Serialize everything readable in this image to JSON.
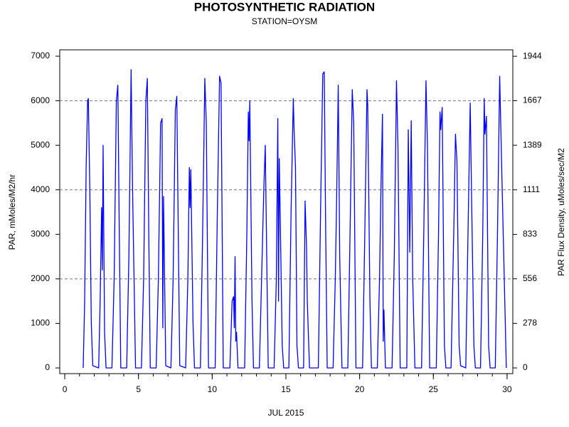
{
  "chart_data": {
    "type": "line",
    "title": "PHOTOSYNTHETIC RADIATION",
    "subtitle": "STATION=OYSM",
    "x_label": "JUL 2015",
    "y_label": "PAR, mMoles/M2/hr",
    "y2_label": "PAR Flux Density, uMoles/sec/M2",
    "xlim": [
      -0.34,
      30.39
    ],
    "xticks": [
      0,
      5,
      10,
      15,
      20,
      25,
      30
    ],
    "x_minor_step": 1,
    "ylim": [
      -128,
      7144
    ],
    "yticks": [
      0,
      1000,
      2000,
      3000,
      4000,
      5000,
      6000,
      7000
    ],
    "y2lim": [
      -35.6,
      1984.4
    ],
    "y2ticks": [
      0,
      278,
      556,
      833,
      1111,
      1389,
      1667,
      1944
    ],
    "reference_lines": [
      2000,
      4000,
      6000
    ],
    "series": [
      {
        "color": "#0000ff",
        "x": [
          1.25,
          1.35,
          1.45,
          1.55,
          1.6,
          1.7,
          1.8,
          1.9,
          2.3,
          2.4,
          2.5,
          2.55,
          2.6,
          2.7,
          2.8,
          3.2,
          3.35,
          3.5,
          3.6,
          3.7,
          3.8,
          4.2,
          4.35,
          4.5,
          4.6,
          4.8,
          5.2,
          5.35,
          5.5,
          5.6,
          5.7,
          5.8,
          6.2,
          6.35,
          6.5,
          6.6,
          6.65,
          6.7,
          6.85,
          7.2,
          7.35,
          7.5,
          7.6,
          7.7,
          7.8,
          8.2,
          8.35,
          8.45,
          8.5,
          8.55,
          8.7,
          8.8,
          9.2,
          9.35,
          9.5,
          9.6,
          9.75,
          10.2,
          10.35,
          10.5,
          10.6,
          10.75,
          11.2,
          11.35,
          11.45,
          11.5,
          11.55,
          11.6,
          11.65,
          11.75,
          12.2,
          12.35,
          12.45,
          12.5,
          12.55,
          12.7,
          12.8,
          13.2,
          13.35,
          13.5,
          13.6,
          13.7,
          13.8,
          14.2,
          14.35,
          14.45,
          14.5,
          14.55,
          14.6,
          14.75,
          14.85,
          15.2,
          15.35,
          15.5,
          15.55,
          15.65,
          15.75,
          15.85,
          16.2,
          16.3,
          16.4,
          16.45,
          16.6,
          17.2,
          17.35,
          17.5,
          17.6,
          17.7,
          17.8,
          18.2,
          18.35,
          18.45,
          18.55,
          18.65,
          18.8,
          19.2,
          19.35,
          19.5,
          19.6,
          19.75,
          20.2,
          20.35,
          20.5,
          20.55,
          20.7,
          20.8,
          21.2,
          21.35,
          21.45,
          21.55,
          21.6,
          21.65,
          21.75,
          22.2,
          22.35,
          22.5,
          22.6,
          22.75,
          23.2,
          23.3,
          23.4,
          23.5,
          23.6,
          23.75,
          24.2,
          24.35,
          24.5,
          24.6,
          24.75,
          25.2,
          25.35,
          25.45,
          25.5,
          25.6,
          25.75,
          25.85,
          26.2,
          26.4,
          26.5,
          26.6,
          26.75,
          26.85,
          27.2,
          27.35,
          27.5,
          27.6,
          27.75,
          27.85,
          28.2,
          28.35,
          28.45,
          28.5,
          28.6,
          28.75,
          28.85,
          29.2,
          29.35,
          29.5,
          29.65,
          29.95
        ],
        "values": [
          0,
          1500,
          4500,
          6000,
          6050,
          4000,
          1000,
          50,
          0,
          1500,
          3600,
          2200,
          5000,
          800,
          0,
          0,
          2000,
          6000,
          6350,
          3000,
          0,
          0,
          2500,
          6700,
          4000,
          0,
          0,
          2000,
          6000,
          6500,
          3000,
          0,
          0,
          2000,
          5500,
          5600,
          900,
          3850,
          50,
          0,
          2000,
          5800,
          6100,
          3000,
          50,
          0,
          2000,
          4500,
          3600,
          4450,
          1000,
          0,
          0,
          3000,
          6500,
          5500,
          0,
          0,
          3500,
          6550,
          6400,
          0,
          0,
          1500,
          1600,
          900,
          2500,
          600,
          800,
          0,
          0,
          3000,
          5750,
          5100,
          6000,
          1500,
          0,
          0,
          2000,
          4000,
          5000,
          2500,
          0,
          0,
          2000,
          5600,
          1500,
          4700,
          3700,
          500,
          0,
          0,
          3500,
          6050,
          5400,
          4500,
          500,
          0,
          0,
          3750,
          2700,
          1500,
          0,
          0,
          3500,
          6600,
          6650,
          3000,
          0,
          0,
          2000,
          4000,
          6350,
          2500,
          0,
          0,
          3000,
          6250,
          5500,
          0,
          0,
          3000,
          6250,
          5900,
          1500,
          0,
          0,
          2000,
          4100,
          5700,
          600,
          1300,
          0,
          0,
          2500,
          6450,
          5000,
          0,
          0,
          5350,
          2600,
          5550,
          2000,
          0,
          0,
          3000,
          6450,
          5000,
          0,
          0,
          3000,
          5750,
          5350,
          5850,
          500,
          0,
          0,
          3300,
          5250,
          4650,
          500,
          50,
          0,
          3000,
          5950,
          3700,
          500,
          0,
          0,
          3000,
          6050,
          5250,
          5650,
          500,
          0,
          0,
          3000,
          6550,
          4300,
          0
        ]
      }
    ]
  }
}
